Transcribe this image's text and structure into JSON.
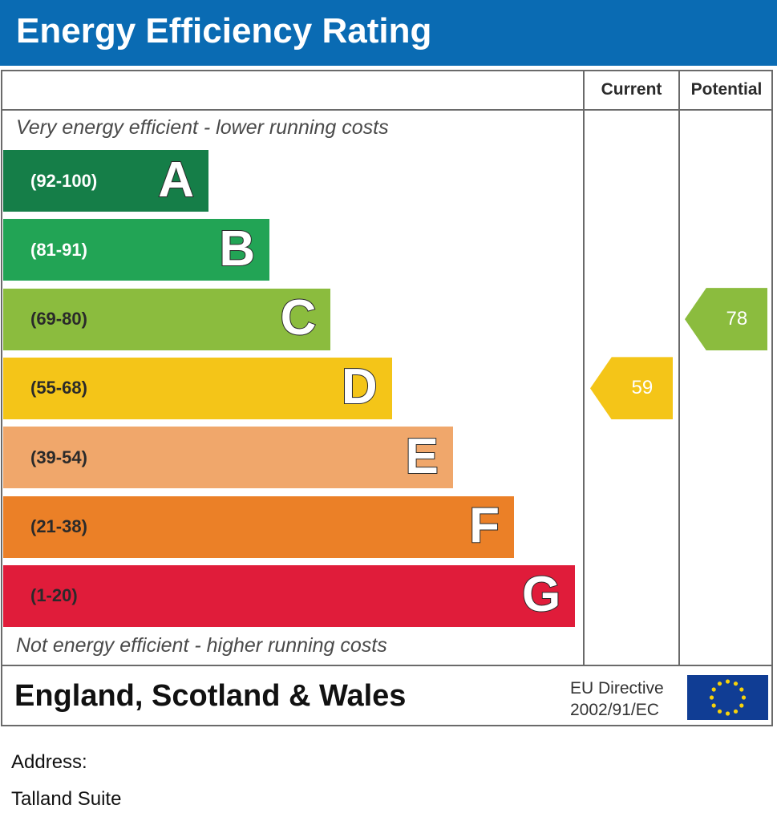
{
  "title": "Energy Efficiency Rating",
  "chart_data": {
    "type": "bar",
    "columns": [
      "Current",
      "Potential"
    ],
    "top_note": "Very energy efficient - lower running costs",
    "bottom_note": "Not energy efficient - higher running costs",
    "bands": [
      {
        "letter": "A",
        "range": "(92-100)",
        "color": "#157e48",
        "range_color": "#ffffff"
      },
      {
        "letter": "B",
        "range": "(81-91)",
        "color": "#22a455",
        "range_color": "#ffffff"
      },
      {
        "letter": "C",
        "range": "(69-80)",
        "color": "#8bbc3e",
        "range_color": "#2a2a2a"
      },
      {
        "letter": "D",
        "range": "(55-68)",
        "color": "#f4c518",
        "range_color": "#2a2a2a"
      },
      {
        "letter": "E",
        "range": "(39-54)",
        "color": "#f0a76b",
        "range_color": "#2a2a2a"
      },
      {
        "letter": "F",
        "range": "(21-38)",
        "color": "#eb8027",
        "range_color": "#2a2a2a"
      },
      {
        "letter": "G",
        "range": "(1-20)",
        "color": "#e01c3a",
        "range_color": "#2a2a2a"
      }
    ],
    "current": {
      "value": 59,
      "label": "59",
      "band": "D",
      "color": "#f4c518"
    },
    "potential": {
      "value": 78,
      "label": "78",
      "band": "C",
      "color": "#8bbc3e"
    }
  },
  "footer": {
    "region": "England, Scotland & Wales",
    "eu_line1": "EU Directive",
    "eu_line2": "2002/91/EC",
    "flag_icon": "eu-flag-icon"
  },
  "address": {
    "label": "Address:",
    "value": "Talland Suite"
  }
}
